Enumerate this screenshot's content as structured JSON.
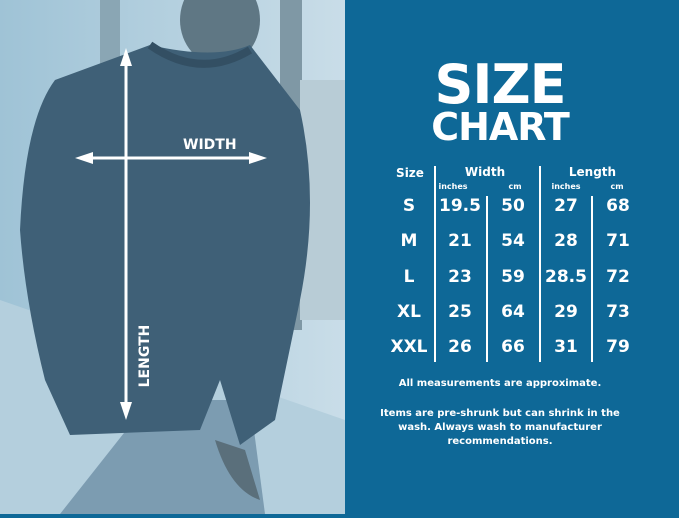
{
  "diagram": {
    "width_label": "WIDTH",
    "length_label": "LENGTH"
  },
  "title": {
    "line1": "SIZE",
    "line2": "CHART"
  },
  "table": {
    "size_header": "Size",
    "width_header": "Width",
    "length_header": "Length",
    "units": [
      "inches",
      "cm",
      "inches",
      "cm"
    ],
    "rows": [
      {
        "size": "S",
        "width_in": "19.5",
        "width_cm": "50",
        "length_in": "27",
        "length_cm": "68"
      },
      {
        "size": "M",
        "width_in": "21",
        "width_cm": "54",
        "length_in": "28",
        "length_cm": "71"
      },
      {
        "size": "L",
        "width_in": "23",
        "width_cm": "59",
        "length_in": "28.5",
        "length_cm": "72"
      },
      {
        "size": "XL",
        "width_in": "25",
        "width_cm": "64",
        "length_in": "29",
        "length_cm": "73"
      },
      {
        "size": "XXL",
        "width_in": "26",
        "width_cm": "66",
        "length_in": "31",
        "length_cm": "79"
      }
    ]
  },
  "notes": {
    "approx": "All measurements are approximate.",
    "shrink": "Items are pre-shrunk but can shrink in the wash. Always wash to manufacturer recommendations."
  },
  "colors": {
    "panel": "#0e6897",
    "text": "#ffffff"
  }
}
